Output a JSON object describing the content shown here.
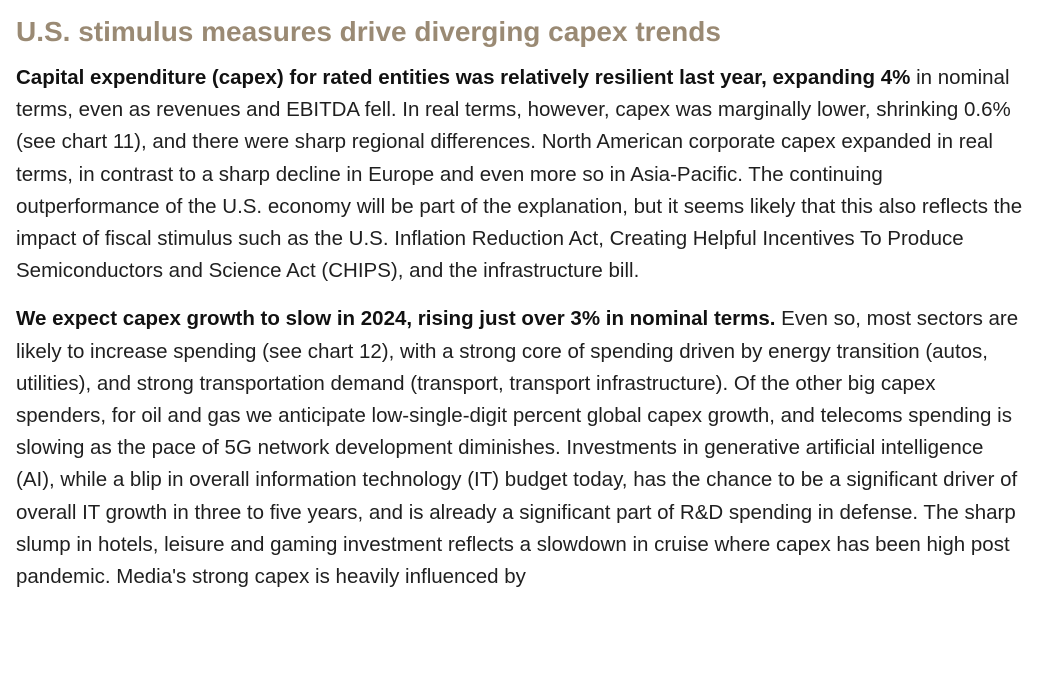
{
  "article": {
    "heading": "U.S. stimulus measures drive diverging capex trends",
    "paragraphs": [
      {
        "lead": "Capital expenditure (capex) for rated entities was relatively resilient last year, expanding 4%",
        "body": " in nominal terms, even as revenues and EBITDA fell. In real terms, however, capex was marginally lower, shrinking 0.6% (see chart 11), and there were sharp regional differences. North American corporate capex expanded in real terms, in contrast to a sharp decline in Europe and even more so in Asia-Pacific. The continuing outperformance of the U.S. economy will be part of the explanation, but it seems likely that this also reflects the impact of fiscal stimulus such as the U.S. Inflation Reduction Act, Creating Helpful Incentives To Produce Semiconductors and Science Act (CHIPS), and the infrastructure bill."
      },
      {
        "lead": "We expect capex growth to slow in 2024, rising just over 3% in nominal terms.",
        "body": " Even so, most sectors are likely to increase spending (see chart 12), with a strong core of spending driven by energy transition (autos, utilities), and strong transportation demand (transport, transport infrastructure). Of the other big capex spenders, for oil and gas we anticipate low-single-digit percent global capex growth, and telecoms spending is slowing as the pace of 5G network development diminishes. Investments in generative artificial intelligence (AI), while a blip in overall information technology (IT) budget today, has the chance to be a significant driver of overall IT growth in three to five years, and is already a significant part of R&D spending in defense. The sharp slump in hotels, leisure and gaming investment reflects a slowdown in cruise where capex has been high post pandemic. Media's strong capex is heavily influenced by"
      }
    ]
  },
  "colors": {
    "heading": "#9a8a74",
    "body_text": "#1f1f1f",
    "background": "#ffffff"
  }
}
